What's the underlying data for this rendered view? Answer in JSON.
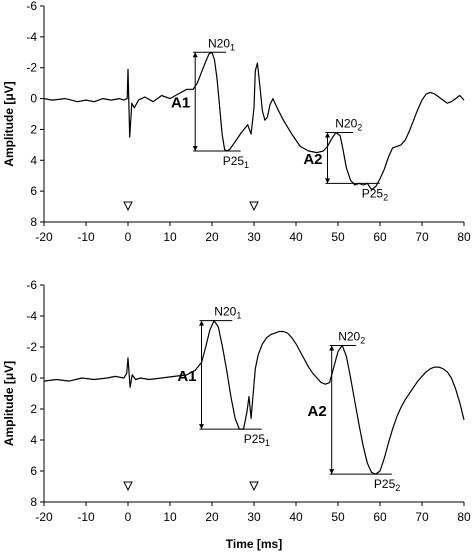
{
  "chart_data": [
    {
      "type": "line",
      "panel": "top",
      "xlabel": "",
      "ylabel": "Amplitude [μV]",
      "xlim": [
        -20,
        80
      ],
      "ylim": [
        -6,
        8
      ],
      "y_inverted": true,
      "grid": false,
      "xticks": [
        -20,
        -10,
        0,
        10,
        20,
        30,
        40,
        50,
        60,
        70,
        80
      ],
      "yticks": [
        -6,
        -4,
        -2,
        0,
        2,
        4,
        6,
        8
      ],
      "stimulus_markers": [
        0,
        30
      ],
      "series": [
        {
          "x": [
            -20,
            -18,
            -15,
            -12,
            -10,
            -8,
            -6,
            -4,
            -2,
            -1,
            -0.2,
            0,
            0.4,
            0.9,
            1.5,
            2.5,
            4,
            6,
            8,
            10,
            12,
            14,
            15.5,
            16.5,
            17.5,
            18.5,
            19.3,
            20,
            20.6,
            21.2,
            21.8,
            22.4,
            23,
            23.5,
            24.2,
            25.5,
            27,
            28.5,
            29.3,
            30,
            30.3,
            30.8,
            31.4,
            32,
            32.6,
            33.2,
            33.8,
            34.5,
            35.5,
            37,
            39,
            41,
            43,
            45,
            46.5,
            47.5,
            48.5,
            49.5,
            50.5,
            51.2,
            52,
            53,
            54,
            55,
            56,
            57,
            58,
            59,
            60,
            61,
            62,
            63,
            64,
            65,
            66,
            67,
            68,
            69,
            70,
            71,
            72,
            73,
            74,
            75,
            76,
            77,
            78,
            79,
            80
          ],
          "y": [
            0.0,
            0.1,
            0.0,
            0.2,
            0.1,
            0.2,
            0.0,
            0.1,
            0.0,
            0.1,
            0.0,
            -1.9,
            2.5,
            0.3,
            0.6,
            0.1,
            -0.1,
            0.2,
            -0.2,
            0.0,
            -0.3,
            -0.6,
            -0.6,
            -1.0,
            -1.7,
            -2.4,
            -2.9,
            -3.0,
            -2.5,
            -1.3,
            0.5,
            2.3,
            3.3,
            3.4,
            3.3,
            2.8,
            2.2,
            1.7,
            2.3,
            0.6,
            -1.8,
            -2.3,
            -0.8,
            0.8,
            1.4,
            1.2,
            0.4,
            0.0,
            0.6,
            1.4,
            2.3,
            3.1,
            3.4,
            3.5,
            3.4,
            3.1,
            2.6,
            2.2,
            2.4,
            3.3,
            4.5,
            5.3,
            5.6,
            5.5,
            5.6,
            5.5,
            5.9,
            5.7,
            5.2,
            4.6,
            3.8,
            3.2,
            3.1,
            3.0,
            2.7,
            2.1,
            1.4,
            0.7,
            0.1,
            -0.3,
            -0.4,
            -0.3,
            -0.1,
            0.1,
            0.3,
            0.2,
            0.0,
            -0.2,
            0.1
          ]
        }
      ],
      "annotations": [
        {
          "label_parts": [
            "N20",
            "1"
          ],
          "x": 20,
          "y": -3.0
        },
        {
          "label_parts": [
            "P25",
            "1"
          ],
          "x": 23.5,
          "y": 3.4
        },
        {
          "label_parts": [
            "N20",
            "2"
          ],
          "x": 50.3,
          "y": 2.2
        },
        {
          "label_parts": [
            "P25",
            "2"
          ],
          "x": 56.6,
          "y": 5.5
        },
        {
          "label": "A1",
          "x": 16,
          "from": -3.0,
          "to": 3.4
        },
        {
          "label": "A2",
          "x": 47.5,
          "from": 2.2,
          "to": 5.5
        }
      ]
    },
    {
      "type": "line",
      "panel": "bottom",
      "xlabel": "Time [ms]",
      "ylabel": "Amplitude [μV]",
      "xlim": [
        -20,
        80
      ],
      "ylim": [
        -6,
        8
      ],
      "y_inverted": true,
      "grid": false,
      "xticks": [
        -20,
        -10,
        0,
        10,
        20,
        30,
        40,
        50,
        60,
        70,
        80
      ],
      "yticks": [
        -6,
        -4,
        -2,
        0,
        2,
        4,
        6,
        8
      ],
      "stimulus_markers": [
        0,
        30
      ],
      "series": [
        {
          "x": [
            -20,
            -17,
            -14,
            -11,
            -8,
            -5,
            -3,
            -1,
            -0.3,
            0,
            0.5,
            1,
            1.8,
            3,
            5,
            8,
            11,
            14,
            16,
            17.5,
            18.5,
            19.5,
            20.5,
            21.5,
            22.5,
            23.5,
            24.5,
            25.5,
            26.5,
            27.5,
            28.3,
            28.8,
            29.3,
            29.8,
            30.3,
            31,
            32,
            33,
            34,
            35,
            36,
            37,
            38,
            39,
            40,
            41,
            42,
            43,
            44,
            45,
            46,
            47,
            48,
            49,
            50,
            51,
            52,
            53,
            54,
            55,
            56,
            57,
            58,
            59,
            60,
            61,
            62,
            63,
            64,
            65,
            66,
            67,
            68,
            69,
            70,
            71,
            72,
            73,
            74,
            75,
            76,
            77,
            78,
            79,
            80
          ],
          "y": [
            0.2,
            0.1,
            0.2,
            0.0,
            0.1,
            0.0,
            -0.1,
            0.0,
            -0.3,
            -1.3,
            0.6,
            -0.2,
            0.1,
            0.0,
            0.1,
            0.0,
            -0.1,
            -0.2,
            -0.5,
            -1.0,
            -2.0,
            -3.1,
            -3.7,
            -3.3,
            -2.0,
            -0.5,
            1.2,
            2.6,
            3.3,
            3.3,
            2.2,
            1.2,
            2.6,
            1.0,
            -0.6,
            -1.5,
            -2.2,
            -2.6,
            -2.8,
            -2.9,
            -3.0,
            -3.0,
            -2.9,
            -2.6,
            -2.2,
            -1.7,
            -1.2,
            -0.7,
            -0.3,
            0.0,
            0.3,
            0.4,
            0.3,
            -0.7,
            -1.7,
            -2.1,
            -1.4,
            0.0,
            1.5,
            3.0,
            4.4,
            5.5,
            6.1,
            6.2,
            6.0,
            5.2,
            4.2,
            3.3,
            2.5,
            1.9,
            1.4,
            1.0,
            0.6,
            0.2,
            -0.1,
            -0.4,
            -0.6,
            -0.7,
            -0.7,
            -0.6,
            -0.4,
            0.0,
            0.7,
            1.6,
            2.7
          ]
        }
      ],
      "annotations": [
        {
          "label_parts": [
            "N20",
            "1"
          ],
          "x": 21.5,
          "y": -3.7
        },
        {
          "label_parts": [
            "P25",
            "1"
          ],
          "x": 28.5,
          "y": 3.3
        },
        {
          "label_parts": [
            "N20",
            "2"
          ],
          "x": 51,
          "y": -2.1
        },
        {
          "label_parts": [
            "P25",
            "2"
          ],
          "x": 59.5,
          "y": 6.2
        },
        {
          "label": "A1",
          "x": 17.5,
          "from": -3.7,
          "to": 3.3
        },
        {
          "label": "A2",
          "x": 48.5,
          "from": -2.1,
          "to": 6.2
        }
      ]
    }
  ]
}
